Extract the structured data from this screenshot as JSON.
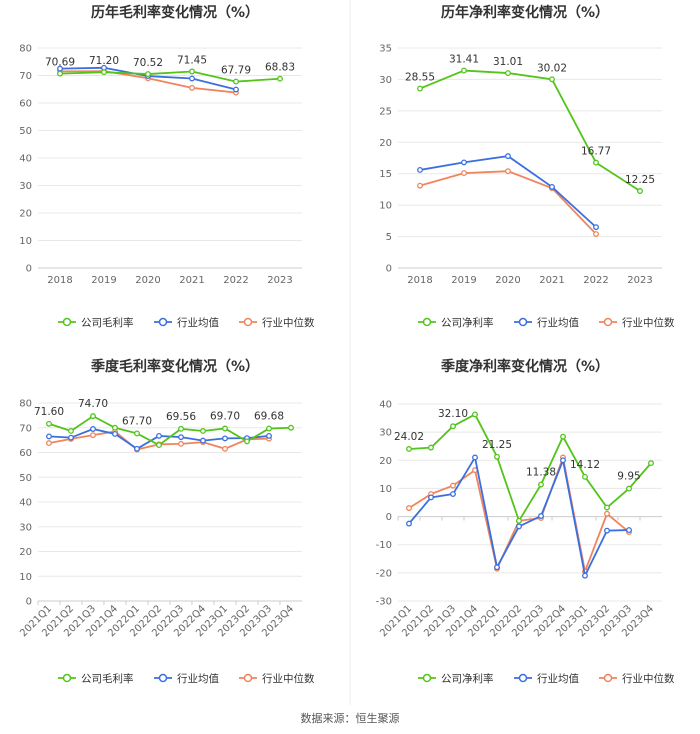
{
  "source": "数据来源：恒生聚源",
  "colors": {
    "company": "#52c41a",
    "industry_avg": "#3b6fe0",
    "industry_median": "#f0845c",
    "grid": "#e8e8e8",
    "axis": "#cccccc"
  },
  "chart_data": [
    {
      "id": "annual-gross",
      "type": "line",
      "title": "历年毛利率变化情况（%）",
      "categories": [
        "2018",
        "2019",
        "2020",
        "2021",
        "2022",
        "2023"
      ],
      "ylim": [
        0,
        80
      ],
      "yticks": [
        0,
        10,
        20,
        30,
        40,
        50,
        60,
        70,
        80
      ],
      "rotate_x": false,
      "series": [
        {
          "name": "公司毛利率",
          "key": "company",
          "values": [
            70.69,
            71.2,
            70.52,
            71.45,
            67.79,
            68.83
          ]
        },
        {
          "name": "行业均值",
          "key": "industry_avg",
          "values": [
            72.5,
            72.8,
            69.8,
            68.9,
            64.9,
            null
          ]
        },
        {
          "name": "行业中位数",
          "key": "industry_median",
          "values": [
            71.5,
            71.6,
            69.0,
            65.5,
            63.8,
            null
          ]
        }
      ],
      "labels": [
        {
          "i": 0,
          "text": "70.69"
        },
        {
          "i": 1,
          "text": "71.20"
        },
        {
          "i": 2,
          "text": "70.52"
        },
        {
          "i": 3,
          "text": "71.45"
        },
        {
          "i": 4,
          "text": "67.79"
        },
        {
          "i": 5,
          "text": "68.83"
        }
      ]
    },
    {
      "id": "annual-net",
      "type": "line",
      "title": "历年净利率变化情况（%）",
      "categories": [
        "2018",
        "2019",
        "2020",
        "2021",
        "2022",
        "2023"
      ],
      "ylim": [
        0,
        35
      ],
      "yticks": [
        0,
        5,
        10,
        15,
        20,
        25,
        30,
        35
      ],
      "rotate_x": false,
      "series": [
        {
          "name": "公司净利率",
          "key": "company",
          "values": [
            28.55,
            31.41,
            31.01,
            30.02,
            16.77,
            12.25
          ]
        },
        {
          "name": "行业均值",
          "key": "industry_avg",
          "values": [
            15.6,
            16.8,
            17.8,
            12.9,
            6.5,
            null
          ]
        },
        {
          "name": "行业中位数",
          "key": "industry_median",
          "values": [
            13.1,
            15.1,
            15.4,
            12.7,
            5.4,
            null
          ]
        }
      ],
      "labels": [
        {
          "i": 0,
          "text": "28.55"
        },
        {
          "i": 1,
          "text": "31.41"
        },
        {
          "i": 2,
          "text": "31.01"
        },
        {
          "i": 3,
          "text": "30.02"
        },
        {
          "i": 4,
          "text": "16.77"
        },
        {
          "i": 5,
          "text": "12.25"
        }
      ]
    },
    {
      "id": "quarterly-gross",
      "type": "line",
      "title": "季度毛利率变化情况（%）",
      "categories": [
        "2021Q1",
        "2021Q2",
        "2021Q3",
        "2021Q4",
        "2022Q1",
        "2022Q2",
        "2022Q3",
        "2022Q4",
        "2023Q1",
        "2023Q2",
        "2023Q3",
        "2023Q4"
      ],
      "ylim": [
        0,
        80
      ],
      "yticks": [
        0,
        10,
        20,
        30,
        40,
        50,
        60,
        70,
        80
      ],
      "rotate_x": true,
      "series": [
        {
          "name": "公司毛利率",
          "key": "company",
          "values": [
            71.6,
            68.7,
            74.7,
            70.0,
            67.7,
            63.0,
            69.56,
            68.7,
            69.7,
            64.5,
            69.68,
            70.0
          ]
        },
        {
          "name": "行业均值",
          "key": "industry_avg",
          "values": [
            66.5,
            66.0,
            69.5,
            67.5,
            61.5,
            66.7,
            66.2,
            64.8,
            65.7,
            65.8,
            66.7,
            null
          ]
        },
        {
          "name": "行业中位数",
          "key": "industry_median",
          "values": [
            63.8,
            65.5,
            67.0,
            68.5,
            61.2,
            63.3,
            63.5,
            64.2,
            61.5,
            65.3,
            65.6,
            null
          ]
        }
      ],
      "labels": [
        {
          "i": 0,
          "text": "71.60"
        },
        {
          "i": 2,
          "text": "74.70"
        },
        {
          "i": 4,
          "text": "67.70"
        },
        {
          "i": 6,
          "text": "69.56"
        },
        {
          "i": 8,
          "text": "69.70"
        },
        {
          "i": 10,
          "text": "69.68"
        }
      ]
    },
    {
      "id": "quarterly-net",
      "type": "line",
      "title": "季度净利率变化情况（%）",
      "categories": [
        "2021Q1",
        "2021Q2",
        "2021Q3",
        "2021Q4",
        "2022Q1",
        "2022Q2",
        "2022Q3",
        "2022Q4",
        "2023Q1",
        "2023Q2",
        "2023Q3",
        "2023Q4"
      ],
      "ylim": [
        -30,
        40
      ],
      "yticks": [
        -30,
        -20,
        -10,
        0,
        10,
        20,
        30,
        40
      ],
      "rotate_x": true,
      "series": [
        {
          "name": "公司净利率",
          "key": "company",
          "values": [
            24.02,
            24.5,
            32.1,
            36.3,
            21.25,
            -1.5,
            11.38,
            28.4,
            14.12,
            3.2,
            9.95,
            19.0
          ]
        },
        {
          "name": "行业均值",
          "key": "industry_avg",
          "values": [
            -2.5,
            6.8,
            8.0,
            21.0,
            -18.0,
            -3.5,
            0.2,
            20.0,
            -21.0,
            -5.0,
            -4.8,
            null
          ]
        },
        {
          "name": "行业中位数",
          "key": "industry_median",
          "values": [
            3.0,
            8.0,
            11.0,
            16.5,
            -18.5,
            -1.5,
            -0.5,
            21.0,
            -19.5,
            1.0,
            -5.5,
            null
          ]
        }
      ],
      "labels": [
        {
          "i": 0,
          "text": "24.02"
        },
        {
          "i": 2,
          "text": "32.10"
        },
        {
          "i": 4,
          "text": "21.25"
        },
        {
          "i": 6,
          "text": "11.38"
        },
        {
          "i": 8,
          "text": "14.12"
        },
        {
          "i": 10,
          "text": "9.95"
        }
      ]
    }
  ]
}
